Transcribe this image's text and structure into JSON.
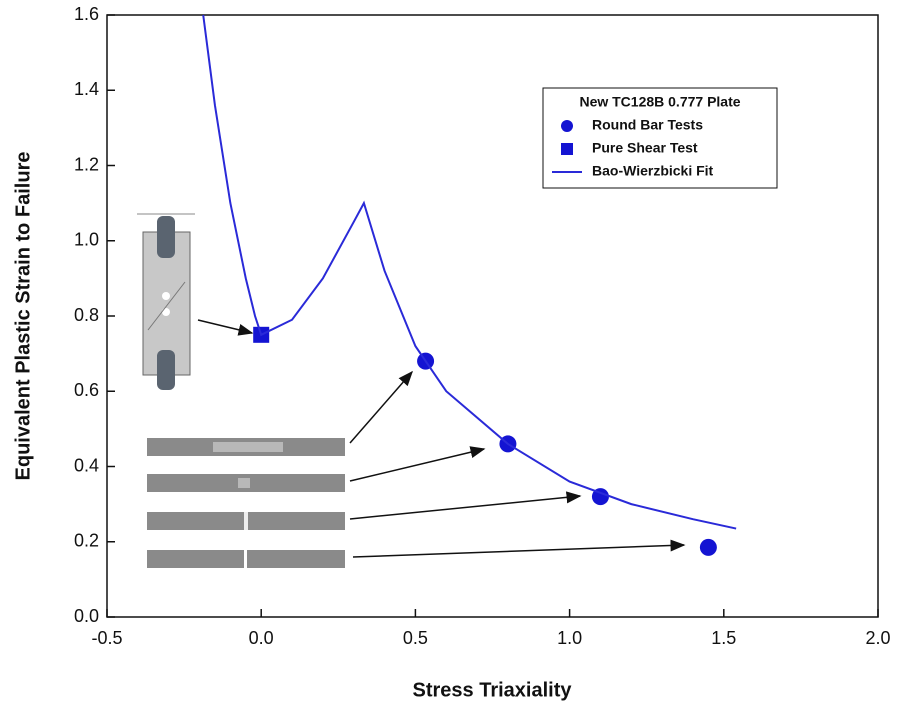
{
  "chart_data": {
    "type": "scatter",
    "xlabel": "Stress Triaxiality",
    "ylabel": "Equivalent Plastic Strain to Failure",
    "legend_title": "New TC128B 0.777 Plate",
    "legend_position": "upper right",
    "xlim": [
      -0.5,
      2.0
    ],
    "ylim": [
      0,
      1.6
    ],
    "xticks": [
      -0.5,
      {
        "value": 0,
        "label": "0.0"
      },
      0.5,
      {
        "value": 1,
        "label": "1.0"
      },
      1.5,
      {
        "value": 2,
        "label": "2.0"
      }
    ],
    "yticks": [
      {
        "value": 0,
        "label": "0.0"
      },
      0.2,
      0.4,
      0.6,
      0.8,
      {
        "value": 1,
        "label": "1.0"
      },
      1.2,
      1.4,
      1.6
    ],
    "series": [
      {
        "name": "Round Bar Tests",
        "color": "#1414d2",
        "marker": "circle",
        "x": [
          0.533,
          0.8,
          1.1,
          1.45
        ],
        "values": [
          0.68,
          0.46,
          0.32,
          0.185
        ]
      },
      {
        "name": "Pure Shear Test",
        "color": "#1414d2",
        "marker": "square",
        "x": [
          0
        ],
        "values": [
          0.75
        ]
      },
      {
        "name": "Bao-Wierzbicki Fit",
        "color": "#2a2ad8",
        "marker": "line",
        "x": [
          -0.188,
          -0.15,
          -0.1,
          -0.05,
          -0.02,
          0,
          0.1,
          0.2,
          0.3,
          0.333,
          0.4,
          0.5,
          0.6,
          0.8,
          1.0,
          1.2,
          1.4,
          1.54
        ],
        "values": [
          1.6,
          1.36,
          1.1,
          0.9,
          0.8,
          0.75,
          0.79,
          0.9,
          1.05,
          1.1,
          0.92,
          0.72,
          0.6,
          0.46,
          0.36,
          0.3,
          0.26,
          0.235
        ]
      }
    ]
  }
}
